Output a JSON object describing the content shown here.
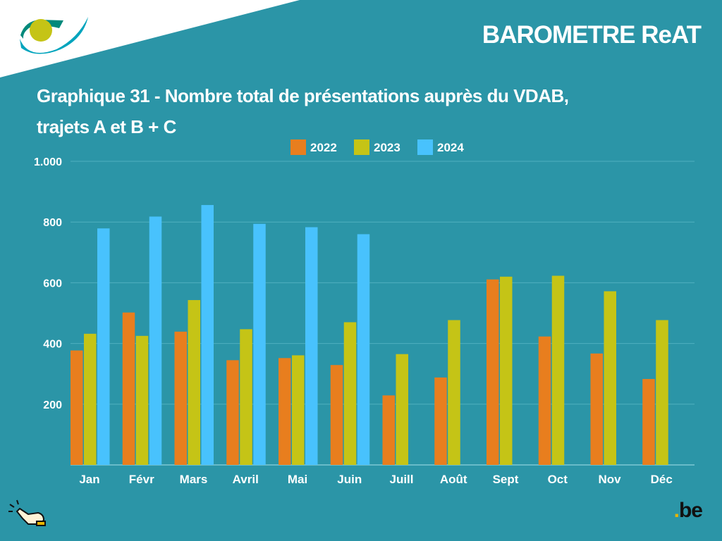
{
  "header": {
    "brand": "BAROMETRE ReAT",
    "logo_domain": ".be"
  },
  "chart_data": {
    "type": "bar",
    "title": "Graphique 31 - Nombre total de présentations auprès du VDAB, trajets A et B + C",
    "title_line1": "Graphique 31 - Nombre total de présentations auprès du VDAB,",
    "title_line2": "trajets A et B + C",
    "xlabel": "",
    "ylabel": "",
    "ylim": [
      0,
      1000
    ],
    "yticks": [
      200,
      400,
      600,
      800,
      1000
    ],
    "ytick_labels": [
      "200",
      "400",
      "600",
      "800",
      "1.000"
    ],
    "grid": true,
    "legend_position": "top-center",
    "categories": [
      "Jan",
      "Févr",
      "Mars",
      "Avril",
      "Mai",
      "Juin",
      "Juill",
      "Août",
      "Sept",
      "Oct",
      "Nov",
      "Déc"
    ],
    "series": [
      {
        "name": "2022",
        "color": "#e87e1e",
        "values": [
          377,
          502,
          439,
          345,
          352,
          329,
          229,
          288,
          611,
          423,
          367,
          283
        ]
      },
      {
        "name": "2023",
        "color": "#c5c416",
        "values": [
          432,
          425,
          543,
          447,
          361,
          470,
          365,
          477,
          620,
          623,
          572,
          477
        ]
      },
      {
        "name": "2024",
        "color": "#48c2fd",
        "values": [
          779,
          818,
          856,
          794,
          783,
          760,
          null,
          null,
          null,
          null,
          null,
          null
        ]
      }
    ]
  }
}
